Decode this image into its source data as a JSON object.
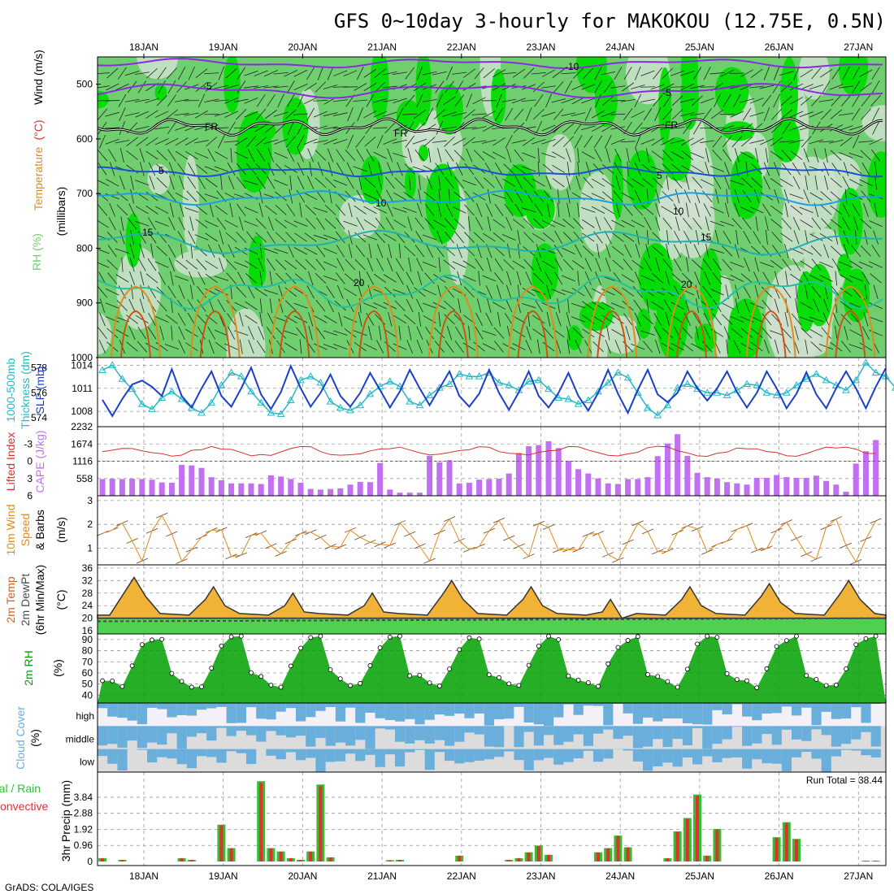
{
  "title": "GFS 0~10day 3-hourly for MAKOKOU (12.75E, 0.5N)",
  "footer": "GrADS: COLA/IGES",
  "run_total": "Run Total = 38.44",
  "dates": [
    "18JAN",
    "19JAN",
    "20JAN",
    "21JAN",
    "22JAN",
    "23JAN",
    "24JAN",
    "25JAN",
    "26JAN",
    "27JAN"
  ],
  "labels": {
    "upper_rh": "RH (%)",
    "upper_temp": "Temperature",
    "upper_temp_unit": "(°C)",
    "upper_wind": "Wind (m/s)",
    "upper_mb": "(millibars)",
    "thick": "1000-500mb",
    "thick2": "Thickness (dm)",
    "slp": "SLP (mb)",
    "li": "Lifted Index",
    "cape": "CAPE (J/kg)",
    "wind10a": "10m Wind",
    "wind10b": "Speed",
    "wind10c": "& Barbs",
    "wind10d": "(m/s)",
    "t2a": "2m Temp",
    "t2b": "2m DewPt",
    "t2c": "(6hr Min/Max)",
    "t2d": "(°C)",
    "rh2a": "2m RH",
    "rh2b": "(%)",
    "cloud": "Cloud Cover",
    "cloud2": "(%)",
    "cloud_levels": [
      "high",
      "middle",
      "low"
    ],
    "precip_total": "Total / Rain",
    "precip_conv": "Convective",
    "precip_unit": "3hr Precip (mm)",
    "contours": {
      "m10": "-10",
      "m5": "-5",
      "fr": "FR",
      "p5": "5",
      "p10": "10",
      "p15": "15",
      "p20": "20"
    }
  },
  "colors": {
    "rh_dark": "#00dd00",
    "rh_mid": "#6fcf6f",
    "rh_light": "#cfe0cf",
    "temp_cold": "#8a2be2",
    "temp_fr": "#000000",
    "temp_5": "#1c4fd8",
    "temp_10": "#1aa0e0",
    "temp_15": "#20b0b0",
    "temp_20": "#20c0a0",
    "slp": "#1a3fc8",
    "thick": "#22b8c8",
    "li": "#d83030",
    "cape": "#c070f0",
    "wind": "#e08a1a",
    "tmax": "#e05a10",
    "dew": "#4a4a4a",
    "rh2": "#00a000",
    "cloud": "#6aaedc",
    "precip_total": "#30c030",
    "precip_conv": "#e03030"
  },
  "chart_data": [
    {
      "type": "area",
      "name": "upper-air cross-section",
      "y_axis_ticks": [
        500,
        600,
        700,
        800,
        900,
        1000
      ],
      "contours_degC": [
        -10,
        -5,
        0,
        5,
        10,
        15,
        20
      ],
      "x": [
        "18JAN",
        "19JAN",
        "20JAN",
        "21JAN",
        "22JAN",
        "23JAN",
        "24JAN",
        "25JAN",
        "26JAN",
        "27JAN"
      ]
    },
    {
      "type": "line",
      "name": "slp-thickness",
      "slp_ticks": [
        1008,
        1011,
        1014
      ],
      "thick_ticks": [
        574,
        576,
        578
      ],
      "series": [
        {
          "values": [
            1009.5,
            1007.4,
            1009.6,
            1011.5,
            1012.0,
            1011.2,
            1010.0,
            1013.5,
            1010.0,
            1008.5,
            1011.0,
            1013.2,
            1010.0,
            1008.6,
            1011.0,
            1013.7,
            1010.2,
            1008.3,
            1010.5,
            1013.9,
            1011.0,
            1008.6,
            1010.4,
            1012.8,
            1010.0,
            1008.6,
            1010.4,
            1013.0,
            1010.8,
            1008.5,
            1010.6,
            1013.4,
            1011.0,
            1008.8,
            1011.0,
            1013.2,
            1010.0,
            1008.6,
            1010.3,
            1013.4,
            1010.4,
            1008.2,
            1010.5,
            1013.2,
            1010.0,
            1008.5,
            1010.4,
            1013.0,
            1010.0,
            1008.1,
            1010.4,
            1013.4,
            1010.3,
            1007.8,
            1010.8,
            1013.4,
            1010.2,
            1009.2,
            1010.4,
            1013.2,
            1011.0,
            1009.4,
            1011.0,
            1013.2,
            1010.5,
            1008.5,
            1010.4,
            1013.2,
            1011.0,
            1008.4,
            1010.3,
            1013.1,
            1010.2,
            1008.4,
            1011.0,
            1013.2,
            1011.0,
            1008.4,
            1011.2,
            1013.6
          ]
        },
        {
          "values": [
            577.8,
            578.2,
            577.1,
            576.3,
            575.1,
            574.7,
            575.6,
            576.1,
            575.5,
            574.8,
            574.4,
            575.2,
            576.6,
            577.6,
            577.3,
            576.1,
            575.2,
            574.4,
            574.3,
            575.4,
            577.0,
            577.3,
            576.8,
            575.3,
            574.8,
            574.6,
            575.0,
            575.9,
            576.5,
            576.9,
            576.5,
            575.3,
            575.0,
            575.8,
            576.4,
            576.7,
            577.5,
            577.3,
            577.3,
            577.6,
            576.8,
            576.6,
            576.2,
            576.9,
            577.0,
            576.3,
            575.6,
            575.5,
            575.1,
            575.4,
            576.1,
            576.8,
            577.6,
            577.2,
            576.0,
            574.8,
            574.2,
            575.0,
            576.4,
            576.7,
            576.3,
            576.0,
            576.0,
            575.8,
            576.2,
            576.7,
            576.6,
            576.0,
            575.8,
            576.0,
            576.6,
            577.1,
            577.5,
            577.0,
            576.6,
            576.2,
            577.0,
            578.4,
            577.6,
            577.3,
            576.4,
            576.0
          ]
        }
      ]
    },
    {
      "type": "bar",
      "name": "li-cape",
      "li_ticks": [
        -3,
        0,
        3,
        6
      ],
      "cape_ticks": [
        558,
        1116,
        1674,
        2232
      ],
      "cape": [
        540,
        550,
        540,
        550,
        540,
        520,
        430,
        420,
        1000,
        980,
        900,
        600,
        500,
        400,
        400,
        400,
        380,
        660,
        620,
        540,
        420,
        220,
        200,
        220,
        240,
        360,
        450,
        440,
        1060,
        200,
        100,
        100,
        100,
        1290,
        1080,
        1150,
        400,
        420,
        520,
        540,
        550,
        720,
        1380,
        1600,
        1640,
        1760,
        1540,
        1130,
        860,
        720,
        560,
        400,
        380,
        540,
        540,
        600,
        1280,
        1690,
        1990,
        1290,
        740,
        600,
        560,
        440,
        400,
        360,
        580,
        580,
        670,
        600,
        580,
        580,
        650,
        480,
        360,
        130,
        1040,
        1440,
        1800,
        1320,
        1000,
        940,
        860,
        1000,
        1000,
        980,
        980,
        700,
        580,
        600,
        500,
        360,
        460,
        420,
        600,
        600
      ]
    },
    {
      "type": "line",
      "name": "10m-wind",
      "y_ticks": [
        1,
        2,
        3
      ]
    },
    {
      "type": "area",
      "name": "2m-temp",
      "y_ticks": [
        16,
        20,
        24,
        28,
        32,
        36
      ]
    },
    {
      "type": "area",
      "name": "2m-rh",
      "y_ticks": [
        40,
        50,
        60,
        70,
        80,
        90
      ]
    },
    {
      "type": "heatmap",
      "name": "cloud-cover",
      "rows": [
        "high",
        "middle",
        "low"
      ]
    },
    {
      "type": "bar",
      "name": "3hr-precip",
      "y_ticks": [
        0,
        0.96,
        1.92,
        2.88,
        3.84
      ],
      "total": [
        0.2,
        0.0,
        0.1,
        0.0,
        0.0,
        0.0,
        0.0,
        0.0,
        0.2,
        0.1,
        0.0,
        0.0,
        2.2,
        0.8,
        0.0,
        0.0,
        4.8,
        0.8,
        0.6,
        0.2,
        0.1,
        0.6,
        4.6,
        0.25,
        0.0,
        0.0,
        0.0,
        0.0,
        0.0,
        0.08,
        0.1,
        0.0,
        0.0,
        0.0,
        0.0,
        0.0,
        0.35,
        0.0,
        0.0,
        0.0,
        0.0,
        0.1,
        0.2,
        0.55,
        0.95,
        0.4,
        0.0,
        0.0,
        0.0,
        0.0,
        0.55,
        0.8,
        1.55,
        0.85,
        0.0,
        0.0,
        0.0,
        0.2,
        1.8,
        2.6,
        4.0,
        0.35,
        1.95,
        0.0,
        0.0,
        0.0,
        0.0,
        0.0,
        1.45,
        2.35,
        1.35,
        0.0,
        0.0,
        0.0,
        0.0,
        0.0,
        0.0,
        0.05,
        0.05,
        0.05,
        0.0,
        0.0,
        0.0,
        0.0,
        0.0,
        0.05,
        0.0,
        0.0,
        0.0,
        0.1,
        0.55,
        0.55,
        0.0,
        0.0,
        0.0
      ]
    }
  ]
}
